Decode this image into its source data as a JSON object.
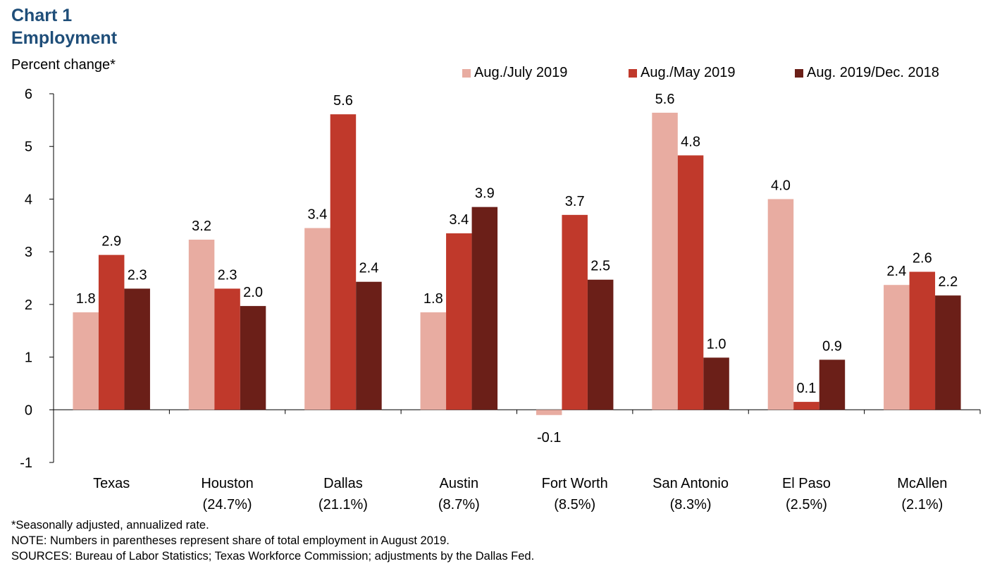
{
  "header": {
    "title_line1": "Chart 1",
    "title_line2": "Employment",
    "y_axis_label": "Percent change*"
  },
  "notes": {
    "line1": "*Seasonally adjusted, annualized rate.",
    "line2": "NOTE: Numbers in parentheses represent share of total employment in August 2019.",
    "line3": "SOURCES: Bureau of Labor Statistics; Texas Workforce Commission; adjustments by the Dallas Fed."
  },
  "chart_data": {
    "type": "bar",
    "title": "Chart 1 Employment",
    "ylabel": "Percent change*",
    "xlabel": "",
    "ylim": [
      -1,
      6
    ],
    "yticks": [
      -1,
      0,
      1,
      2,
      3,
      4,
      5,
      6
    ],
    "legend_position": "top-right",
    "categories": [
      "Texas",
      "Houston",
      "Dallas",
      "Austin",
      "Fort Worth",
      "San Antonio",
      "El Paso",
      "McAllen"
    ],
    "category_sublabels": [
      "",
      "(24.7%)",
      "(21.1%)",
      "(8.7%)",
      "(8.5%)",
      "(8.3%)",
      "(2.5%)",
      "(2.1%)"
    ],
    "series": [
      {
        "name": "Aug./July 2019",
        "color": "#e8aca1",
        "values": [
          1.85,
          3.23,
          3.45,
          1.85,
          -0.1,
          5.64,
          4.0,
          2.37
        ],
        "labels": [
          "1.8",
          "3.2",
          "3.4",
          "1.8",
          "-0.1",
          "5.6",
          "4.0",
          "2.4"
        ]
      },
      {
        "name": "Aug./May 2019",
        "color": "#c0392b",
        "values": [
          2.94,
          2.3,
          5.61,
          3.35,
          3.7,
          4.83,
          0.15,
          2.62
        ],
        "labels": [
          "2.9",
          "2.3",
          "5.6",
          "3.4",
          "3.7",
          "4.8",
          "0.1",
          "2.6"
        ]
      },
      {
        "name": "Aug. 2019/Dec. 2018",
        "color": "#6b1f18",
        "values": [
          2.3,
          1.97,
          2.43,
          3.85,
          2.47,
          0.99,
          0.95,
          2.17
        ],
        "labels": [
          "2.3",
          "2.0",
          "2.4",
          "3.9",
          "2.5",
          "1.0",
          "0.9",
          "2.2"
        ]
      }
    ]
  }
}
